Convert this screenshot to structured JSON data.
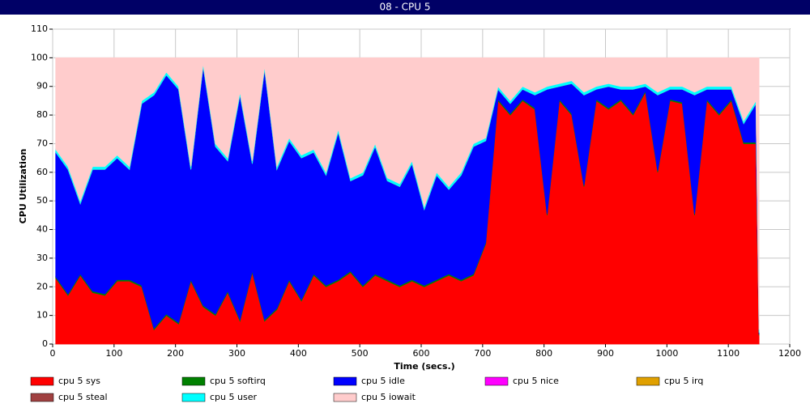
{
  "chart_data": {
    "type": "stacked-area",
    "title": "08 - CPU 5",
    "xlabel": "Time (secs.)",
    "ylabel": "CPU Utilization",
    "xlim": [
      0,
      1200
    ],
    "xticks": [
      0,
      100,
      200,
      300,
      400,
      500,
      600,
      700,
      800,
      900,
      1000,
      1100,
      1200
    ],
    "ylim": [
      0,
      110
    ],
    "yticks": [
      0,
      10,
      20,
      30,
      40,
      50,
      60,
      70,
      80,
      90,
      100,
      110
    ],
    "grid": true,
    "x": [
      5,
      25,
      45,
      65,
      85,
      105,
      125,
      145,
      165,
      185,
      205,
      225,
      245,
      265,
      285,
      305,
      325,
      345,
      365,
      385,
      405,
      425,
      445,
      465,
      485,
      505,
      525,
      545,
      565,
      585,
      605,
      625,
      645,
      665,
      685,
      705,
      725,
      745,
      765,
      785,
      805,
      825,
      845,
      865,
      885,
      905,
      925,
      945,
      965,
      985,
      1005,
      1025,
      1045,
      1065,
      1085,
      1105,
      1125,
      1145,
      1150
    ],
    "series": [
      {
        "name": "cpu 5 sys",
        "color": "#ff0000",
        "values": [
          23,
          17,
          24,
          18,
          17,
          22,
          22,
          20,
          5,
          10,
          7,
          22,
          13,
          10,
          18,
          8,
          25,
          8,
          12,
          22,
          15,
          24,
          20,
          22,
          25,
          20,
          24,
          22,
          20,
          22,
          20,
          22,
          24,
          22,
          24,
          35,
          85,
          80,
          85,
          82,
          45,
          85,
          80,
          55,
          85,
          82,
          85,
          80,
          88,
          60,
          85,
          84,
          45,
          85,
          80,
          85,
          70,
          70,
          3
        ]
      },
      {
        "name": "cpu 5 softirq",
        "color": "#008000",
        "values": [
          0.5,
          0.5,
          0.5,
          0.5,
          0.5,
          0.5,
          0.5,
          0.5,
          0.5,
          0.5,
          0.5,
          0.5,
          0.5,
          0.5,
          0.5,
          0.5,
          0.5,
          0.5,
          0.5,
          0.5,
          0.5,
          0.5,
          0.5,
          0.5,
          0.5,
          0.5,
          0.5,
          0.5,
          0.5,
          0.5,
          0.5,
          0.5,
          0.5,
          0.5,
          0.5,
          0.5,
          0.5,
          0.5,
          0.5,
          0.5,
          0.5,
          0.5,
          0.5,
          0.5,
          0.5,
          0.5,
          0.5,
          0.5,
          0.5,
          0.5,
          0.5,
          0.5,
          0.5,
          0.5,
          0.5,
          0.5,
          0.5,
          0.5,
          0.5
        ]
      },
      {
        "name": "cpu 5 idle",
        "color": "#0000ff",
        "values": [
          43.5,
          43.5,
          24.5,
          42.5,
          43.5,
          42.5,
          38.5,
          63.5,
          81.5,
          83.5,
          81.5,
          38.5,
          83.5,
          58.5,
          45.5,
          78.5,
          37.5,
          87.5,
          48.5,
          48.5,
          49.5,
          42.5,
          38.5,
          51.5,
          31.5,
          38.5,
          44.5,
          34.5,
          34.5,
          40.5,
          26.5,
          36.5,
          29.5,
          36.5,
          44.5,
          35.5,
          3.5,
          3.5,
          3.5,
          4.5,
          43.5,
          4.5,
          10.5,
          31.5,
          3.5,
          7.5,
          3.5,
          8.5,
          1.5,
          26.5,
          3.5,
          4.5,
          41.5,
          3.5,
          8.5,
          3.5,
          6.5,
          13.5,
          0.5
        ]
      },
      {
        "name": "cpu 5 nice",
        "color": "#ff00ff",
        "values": [
          0,
          0,
          0,
          0,
          0,
          0,
          0,
          0,
          0,
          0,
          0,
          0,
          0,
          0,
          0,
          0,
          0,
          0,
          0,
          0,
          0,
          0,
          0,
          0,
          0,
          0,
          0,
          0,
          0,
          0,
          0,
          0,
          0,
          0,
          0,
          0,
          0,
          0,
          0,
          0,
          0,
          0,
          0,
          0,
          0,
          0,
          0,
          0,
          0,
          0,
          0,
          0,
          0,
          0,
          0,
          0,
          0,
          0,
          0
        ]
      },
      {
        "name": "cpu 5 irq",
        "color": "#e0a000",
        "values": [
          0,
          0,
          0,
          0,
          0,
          0,
          0,
          0,
          0,
          0,
          0,
          0,
          0,
          0,
          0,
          0,
          0,
          0,
          0,
          0,
          0,
          0,
          0,
          0,
          0,
          0,
          0,
          0,
          0,
          0,
          0,
          0,
          0,
          0,
          0,
          0,
          0,
          0,
          0,
          0,
          0,
          0,
          0,
          0,
          0,
          0,
          0,
          0,
          0,
          0,
          0,
          0,
          0,
          0,
          0,
          0,
          0,
          0,
          0
        ]
      },
      {
        "name": "cpu 5 steal",
        "color": "#a04040",
        "values": [
          0,
          0,
          0,
          0,
          0,
          0,
          0,
          0,
          0,
          0,
          0,
          0,
          0,
          0,
          0,
          0,
          0,
          0,
          0,
          0,
          0,
          0,
          0,
          0,
          0,
          0,
          0,
          0,
          0,
          0,
          0,
          0,
          0,
          0,
          0,
          0,
          0,
          0,
          0,
          0,
          0,
          0,
          0,
          0,
          0,
          0,
          0,
          0,
          0,
          0,
          0,
          0,
          0,
          0,
          0,
          0,
          0,
          0,
          0
        ]
      },
      {
        "name": "cpu 5 user",
        "color": "#00ffff",
        "values": [
          1,
          1,
          1,
          1,
          1,
          1,
          1,
          1,
          1,
          1,
          1,
          1,
          1,
          1,
          1,
          1,
          1,
          1,
          1,
          1,
          1,
          1,
          1,
          1,
          1,
          1,
          1,
          1,
          1,
          1,
          1,
          1,
          1,
          1,
          1,
          1,
          1,
          1,
          1,
          1,
          1,
          1,
          1,
          1,
          1,
          1,
          1,
          1,
          1,
          1,
          1,
          1,
          1,
          1,
          1,
          1,
          1,
          1,
          1
        ]
      },
      {
        "name": "cpu 5 iowait",
        "color": "#ffcccc",
        "values": [
          32,
          38,
          50,
          38,
          38,
          34,
          38,
          15,
          12,
          5,
          10,
          38,
          2,
          30,
          35,
          12,
          36,
          3,
          38,
          28,
          34,
          32,
          40,
          25,
          42,
          40,
          30,
          42,
          44,
          36,
          52,
          40,
          45,
          40,
          30,
          28,
          10,
          15,
          10,
          12,
          10,
          9,
          8,
          12,
          10,
          9,
          10,
          10,
          9,
          12,
          10,
          10,
          12,
          10,
          10,
          10,
          22,
          15,
          95
        ]
      }
    ]
  }
}
